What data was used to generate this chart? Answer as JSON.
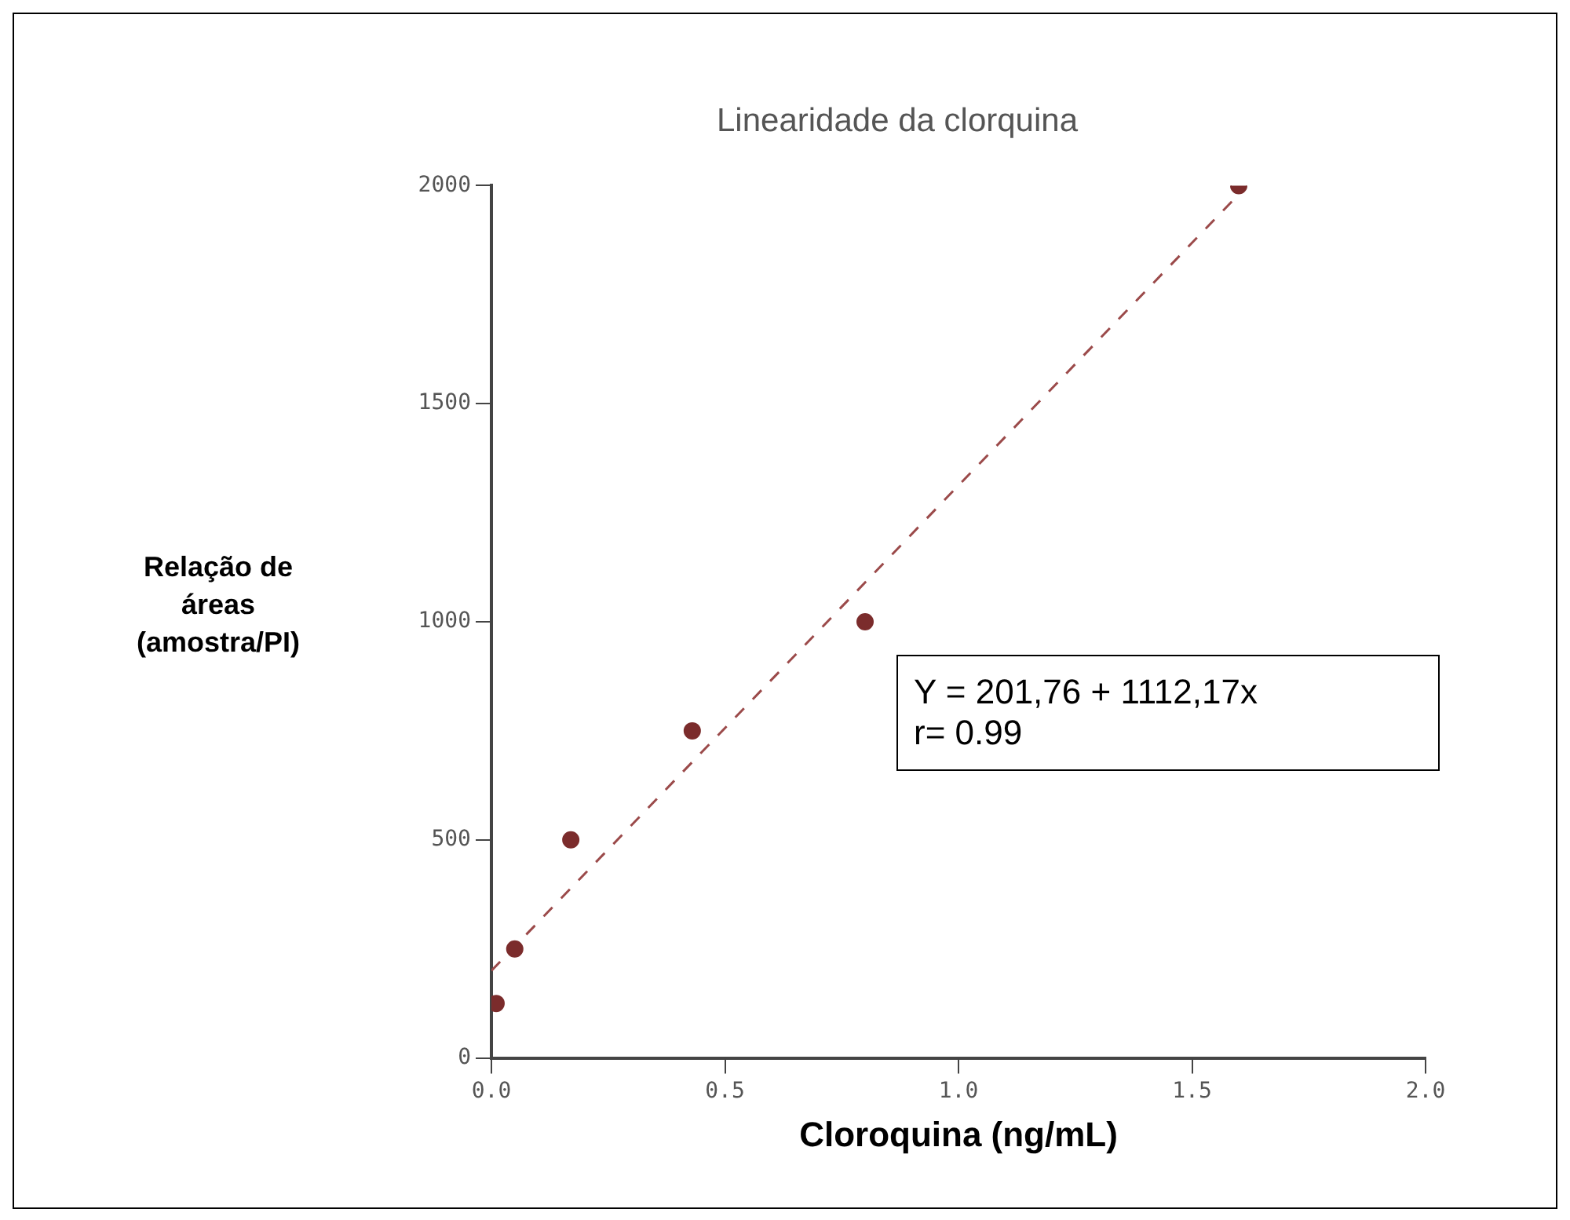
{
  "chart_data": {
    "type": "scatter",
    "title": "Linearidade da clorquina",
    "xlabel": "Cloroquina (ng/mL)",
    "ylabel": "Relação de áreas (amostra/PI)",
    "xlim": [
      0,
      2
    ],
    "xticks": [
      {
        "value": 0,
        "label": "0.0"
      },
      {
        "value": 0.5,
        "label": "0.5"
      },
      {
        "value": 1,
        "label": "1.0"
      },
      {
        "value": 1.5,
        "label": "1.5"
      },
      {
        "value": 2,
        "label": "2.0"
      }
    ],
    "ylim": [
      0,
      2000
    ],
    "yticks": [
      0,
      500,
      1000,
      1500,
      2000
    ],
    "grid": false,
    "marker": "circle",
    "series": [
      {
        "color": "#7b2c2c",
        "x": [
          0.01,
          0.05,
          0.17,
          0.43,
          0.8,
          1.6
        ],
        "values": [
          125,
          250,
          500,
          750,
          1000,
          2000
        ]
      },
      {
        "type": "line",
        "color": "#9b4a4a",
        "x": [
          0,
          1.6
        ],
        "values": [
          200,
          1980
        ],
        "marker": "none",
        "line_style": "dashed"
      }
    ],
    "annotations": [
      "Y = 201,76 + 1112,17x",
      "r= 0.99"
    ]
  }
}
